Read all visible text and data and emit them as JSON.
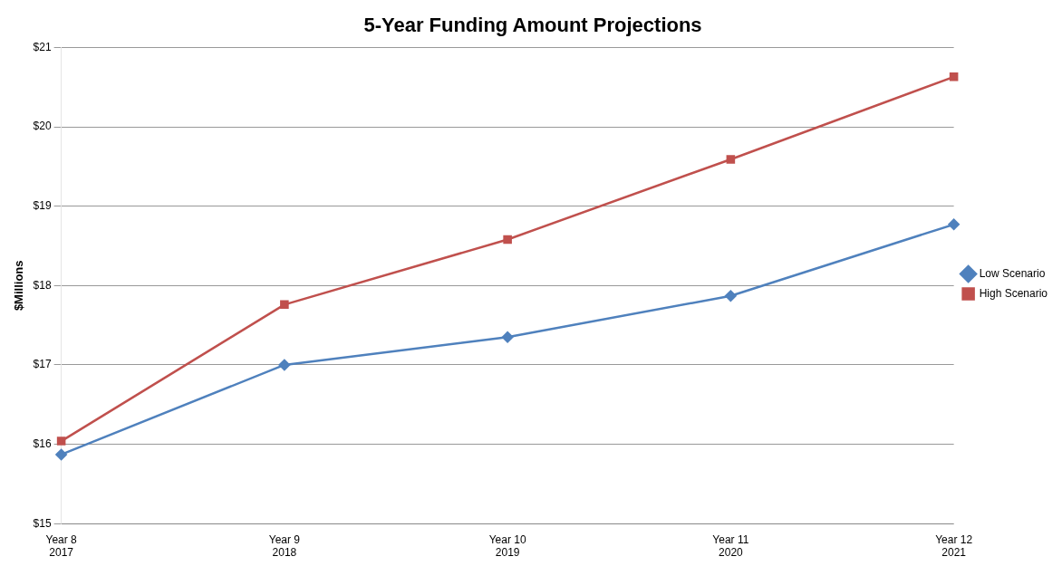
{
  "chart_data": {
    "type": "line",
    "title": "5-Year Funding Amount Projections",
    "ylabel": "$Millions",
    "categories": [
      "Year 8\n2017",
      "Year 9\n2018",
      "Year 10\n2019",
      "Year 11\n2020",
      "Year 12\n2021"
    ],
    "series": [
      {
        "name": "Low Scenario",
        "color": "#4f81bd",
        "marker": "diamond",
        "values": [
          15.87,
          17.0,
          17.35,
          17.87,
          18.77
        ]
      },
      {
        "name": "High Scenario",
        "color": "#c0504d",
        "marker": "square",
        "values": [
          16.04,
          17.76,
          18.58,
          19.59,
          20.63
        ]
      }
    ],
    "ylim": [
      15,
      21
    ],
    "yticks": [
      {
        "value": 15,
        "label": "$15"
      },
      {
        "value": 16,
        "label": "$16"
      },
      {
        "value": 17,
        "label": "$17"
      },
      {
        "value": 18,
        "label": "$18"
      },
      {
        "value": 19,
        "label": "$19"
      },
      {
        "value": 20,
        "label": "$20"
      },
      {
        "value": 21,
        "label": "$21"
      }
    ],
    "grid": "y",
    "legend": "right",
    "line_style": "solid"
  }
}
